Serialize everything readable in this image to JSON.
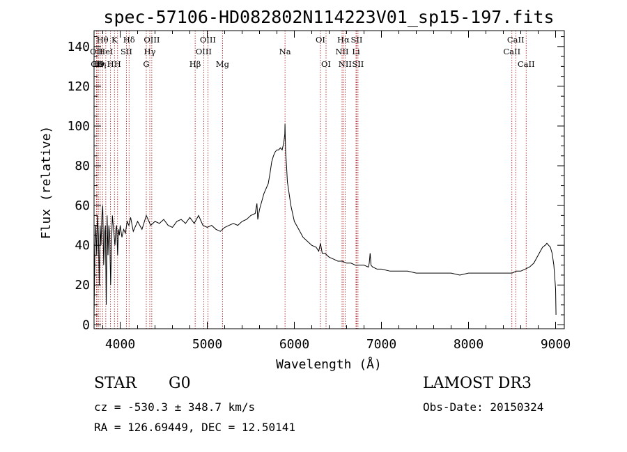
{
  "chart_data": {
    "type": "line",
    "title": "spec-57106-HD082802N114223V01_sp15-197.fits",
    "xlabel": "Wavelength (Å)",
    "ylabel": "Flux (relative)",
    "xlim": [
      3700,
      9100
    ],
    "ylim": [
      -2,
      148
    ],
    "xticks": [
      4000,
      5000,
      6000,
      7000,
      8000,
      9000
    ],
    "yticks": [
      0,
      20,
      40,
      60,
      80,
      100,
      120,
      140
    ],
    "series": [
      {
        "name": "flux",
        "x": [
          3700,
          3710,
          3720,
          3730,
          3740,
          3750,
          3760,
          3770,
          3780,
          3790,
          3800,
          3810,
          3820,
          3830,
          3840,
          3850,
          3860,
          3870,
          3880,
          3890,
          3900,
          3910,
          3920,
          3930,
          3940,
          3950,
          3960,
          3970,
          3980,
          3990,
          4000,
          4020,
          4040,
          4060,
          4080,
          4100,
          4120,
          4150,
          4200,
          4250,
          4300,
          4350,
          4400,
          4450,
          4500,
          4550,
          4600,
          4650,
          4700,
          4750,
          4800,
          4850,
          4900,
          4950,
          5000,
          5050,
          5100,
          5150,
          5200,
          5250,
          5300,
          5350,
          5400,
          5450,
          5500,
          5550,
          5570,
          5580,
          5600,
          5650,
          5700,
          5720,
          5740,
          5760,
          5780,
          5800,
          5820,
          5840,
          5860,
          5870,
          5880,
          5890,
          5893,
          5896,
          5900,
          5910,
          5920,
          5940,
          5960,
          5980,
          6000,
          6050,
          6100,
          6150,
          6200,
          6250,
          6280,
          6300,
          6320,
          6350,
          6400,
          6450,
          6500,
          6550,
          6600,
          6650,
          6700,
          6750,
          6800,
          6850,
          6860,
          6870,
          6880,
          6900,
          6950,
          7000,
          7100,
          7200,
          7300,
          7400,
          7500,
          7600,
          7700,
          7800,
          7900,
          8000,
          8100,
          8200,
          8300,
          8400,
          8500,
          8550,
          8600,
          8650,
          8700,
          8750,
          8800,
          8850,
          8880,
          8900,
          8920,
          8940,
          8960,
          8980,
          9000,
          9005
        ],
        "values": [
          5,
          40,
          50,
          35,
          55,
          45,
          20,
          50,
          40,
          55,
          60,
          30,
          45,
          50,
          10,
          55,
          35,
          50,
          45,
          20,
          40,
          55,
          50,
          45,
          40,
          48,
          50,
          35,
          48,
          45,
          50,
          44,
          48,
          46,
          52,
          50,
          54,
          47,
          52,
          48,
          55,
          50,
          52,
          51,
          53,
          50,
          49,
          52,
          53,
          51,
          54,
          51,
          55,
          50,
          49,
          50,
          48,
          47,
          49,
          50,
          51,
          50,
          52,
          53,
          55,
          56,
          61,
          53,
          58,
          66,
          71,
          76,
          82,
          85,
          87,
          88,
          88,
          89,
          88,
          90,
          92,
          96,
          101,
          94,
          87,
          80,
          72,
          66,
          60,
          56,
          52,
          48,
          44,
          42,
          40,
          39,
          37,
          41,
          36,
          36,
          34,
          33,
          32,
          32,
          31,
          31,
          30,
          30,
          30,
          29,
          31,
          36,
          30,
          29,
          28,
          28,
          27,
          27,
          27,
          26,
          26,
          26,
          26,
          26,
          25,
          26,
          26,
          26,
          26,
          26,
          26,
          27,
          27,
          28,
          29,
          31,
          35,
          39,
          40,
          41,
          40,
          39,
          36,
          30,
          18,
          5
        ]
      }
    ],
    "lines": [
      {
        "wl": 3727,
        "label": "OII",
        "row": 2
      },
      {
        "wl": 3734,
        "label": "CII",
        "row": 3
      },
      {
        "wl": 3750,
        "label": "H9",
        "row": 3
      },
      {
        "wl": 3771,
        "label": "Hη",
        "row": 3
      },
      {
        "wl": 3798,
        "label": "Hθ",
        "row": 1
      },
      {
        "wl": 3835,
        "label": "HeI",
        "row": 2
      },
      {
        "wl": 3889,
        "label": "H",
        "row": 3
      },
      {
        "wl": 3934,
        "label": "K",
        "row": 1
      },
      {
        "wl": 3970,
        "label": "H",
        "row": 3
      },
      {
        "wl": 4102,
        "label": "Hδ",
        "row": 1
      },
      {
        "wl": 4072,
        "label": "SII",
        "row": 2
      },
      {
        "wl": 4300,
        "label": "G",
        "row": 3
      },
      {
        "wl": 4340,
        "label": "Hγ",
        "row": 2
      },
      {
        "wl": 4363,
        "label": "OIII",
        "row": 1
      },
      {
        "wl": 4861,
        "label": "Hβ",
        "row": 3
      },
      {
        "wl": 4959,
        "label": "OIII",
        "row": 2
      },
      {
        "wl": 5007,
        "label": "OIII",
        "row": 1
      },
      {
        "wl": 5175,
        "label": "Mg",
        "row": 3
      },
      {
        "wl": 5893,
        "label": "Na",
        "row": 2
      },
      {
        "wl": 6300,
        "label": "OI",
        "row": 1
      },
      {
        "wl": 6364,
        "label": "OI",
        "row": 3
      },
      {
        "wl": 6548,
        "label": "NII",
        "row": 2
      },
      {
        "wl": 6563,
        "label": "Hα",
        "row": 1
      },
      {
        "wl": 6583,
        "label": "NII",
        "row": 3
      },
      {
        "wl": 6708,
        "label": "Li",
        "row": 2
      },
      {
        "wl": 6716,
        "label": "SII",
        "row": 1
      },
      {
        "wl": 6731,
        "label": "SII",
        "row": 3
      },
      {
        "wl": 8498,
        "label": "CaII",
        "row": 2
      },
      {
        "wl": 8542,
        "label": "CaII",
        "row": 1
      },
      {
        "wl": 8662,
        "label": "CaII",
        "row": 3
      }
    ]
  },
  "info": {
    "object_class": "STAR",
    "subclass": "G0",
    "survey": "LAMOST DR3",
    "cz": "cz = -530.3 ± 348.7 km/s",
    "obs_date": "Obs-Date: 20150324",
    "coords": "RA = 126.69449, DEC =  12.50141"
  },
  "colors": {
    "line": "#000000",
    "marker": "#a01010",
    "background": "#ffffff"
  }
}
